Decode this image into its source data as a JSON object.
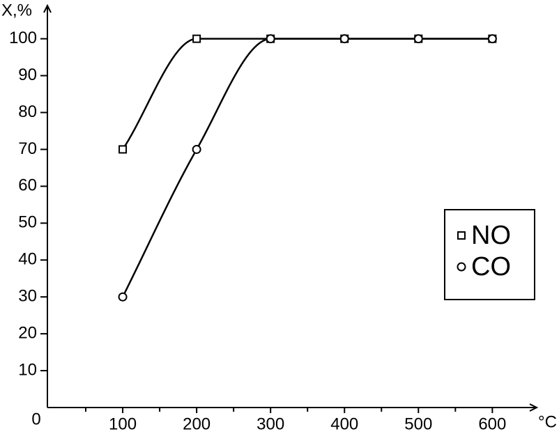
{
  "chart_data": {
    "type": "line",
    "ylabel": "X,%",
    "xlabel": "°C",
    "x": [
      100,
      200,
      300,
      400,
      500,
      600
    ],
    "series": [
      {
        "name": "NO",
        "color": "#000000",
        "marker": "square",
        "values": [
          70,
          100,
          100,
          100,
          100,
          100
        ]
      },
      {
        "name": "CO",
        "color": "#000000",
        "marker": "circle",
        "values": [
          30,
          70,
          100,
          100,
          100,
          100
        ]
      }
    ],
    "xlim": [
      0,
      660
    ],
    "ylim": [
      0,
      109
    ],
    "xticks": [
      100,
      200,
      300,
      400,
      500,
      600
    ],
    "xminorticks": [
      50,
      150,
      250,
      350,
      450,
      550
    ],
    "yticks": [
      0,
      10,
      20,
      30,
      40,
      50,
      60,
      70,
      80,
      90,
      100
    ],
    "legend": "right",
    "grid": false
  }
}
